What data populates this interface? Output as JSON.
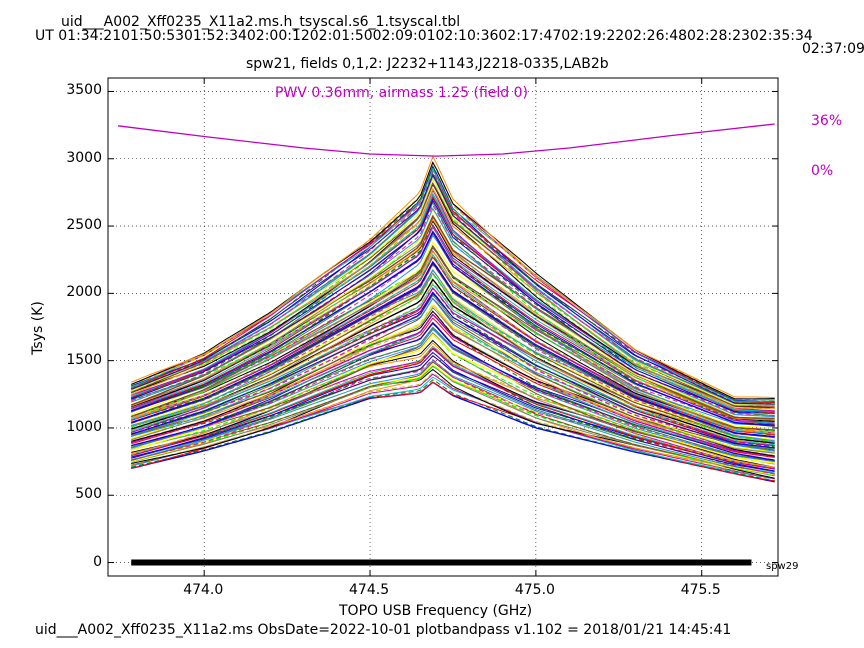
{
  "header": {
    "filename": "uid___A002_Xff0235_X11a2.ms.h_tsyscal.s6_1.tsyscal.tbl",
    "ut_times": "UT 01:34:2101:50:5301:52:3402:00:1202:01:5002:09:0102:10:3602:17:4702:19:2202:26:4802:28:2302:35:34",
    "overflow_time": "02:37:09"
  },
  "footer": {
    "text": "uid___A002_Xff0235_X11a2.ms  ObsDate=2022-10-01   plotbandpass v1.102 = 2018/01/21 14:45:41"
  },
  "chart_data": {
    "type": "line",
    "title": "spw21,  fields 0,1,2: J2232+1143,J2218-0335,LAB2b",
    "xlabel": "TOPO USB Frequency (GHz)",
    "ylabel": "Tsys (K)",
    "xlim": [
      473.71,
      475.73
    ],
    "ylim": [
      -100,
      3600
    ],
    "xticks": [
      474.0,
      474.5,
      475.0,
      475.5
    ],
    "xtick_labels": [
      "474.0",
      "474.5",
      "475.0",
      "475.5"
    ],
    "yticks": [
      0,
      500,
      1000,
      1500,
      2000,
      2500,
      3000,
      3500
    ],
    "ytick_labels": [
      "0",
      "500",
      "1000",
      "1500",
      "2000",
      "2500",
      "3000",
      "3500"
    ],
    "grid": true,
    "line_center_ghz": 474.69,
    "tsys_envelope": {
      "upper": [
        {
          "x": 473.78,
          "y": 1340
        },
        {
          "x": 474.0,
          "y": 1560
        },
        {
          "x": 474.2,
          "y": 1860
        },
        {
          "x": 474.5,
          "y": 2400
        },
        {
          "x": 474.65,
          "y": 2750
        },
        {
          "x": 474.69,
          "y": 3020
        },
        {
          "x": 474.75,
          "y": 2700
        },
        {
          "x": 475.0,
          "y": 2150
        },
        {
          "x": 475.3,
          "y": 1580
        },
        {
          "x": 475.6,
          "y": 1230
        },
        {
          "x": 475.72,
          "y": 1230
        }
      ],
      "lower": [
        {
          "x": 473.78,
          "y": 700
        },
        {
          "x": 474.0,
          "y": 830
        },
        {
          "x": 474.2,
          "y": 970
        },
        {
          "x": 474.5,
          "y": 1220
        },
        {
          "x": 474.65,
          "y": 1260
        },
        {
          "x": 474.69,
          "y": 1340
        },
        {
          "x": 474.75,
          "y": 1240
        },
        {
          "x": 475.0,
          "y": 1000
        },
        {
          "x": 475.3,
          "y": 820
        },
        {
          "x": 475.6,
          "y": 660
        },
        {
          "x": 475.72,
          "y": 600
        }
      ],
      "series_count": 120
    },
    "atmosphere": {
      "label": "PWV 0.36mm, airmass 1.25 (field 0)",
      "right_axis_top": "36%",
      "right_axis_bottom": "0%",
      "color": "#c000c0",
      "curve": [
        {
          "x": 473.74,
          "y": 3245
        },
        {
          "x": 474.0,
          "y": 3165
        },
        {
          "x": 474.3,
          "y": 3080
        },
        {
          "x": 474.5,
          "y": 3035
        },
        {
          "x": 474.7,
          "y": 3020
        },
        {
          "x": 474.9,
          "y": 3035
        },
        {
          "x": 475.1,
          "y": 3080
        },
        {
          "x": 475.4,
          "y": 3170
        },
        {
          "x": 475.72,
          "y": 3258
        }
      ]
    },
    "flag_bar": {
      "x_start": 473.78,
      "x_end": 475.65,
      "y": 0,
      "label": "spw29"
    },
    "series_colors": [
      "#0000ff",
      "#008000",
      "#ff0000",
      "#00bfbf",
      "#bf00bf",
      "#bfbf00",
      "#000000",
      "#ff8c00",
      "#7f7f7f",
      "#00ff00",
      "#8b4513",
      "#ffff00",
      "#1e90ff",
      "#ff1493",
      "#2e8b57",
      "#4b0082"
    ]
  }
}
